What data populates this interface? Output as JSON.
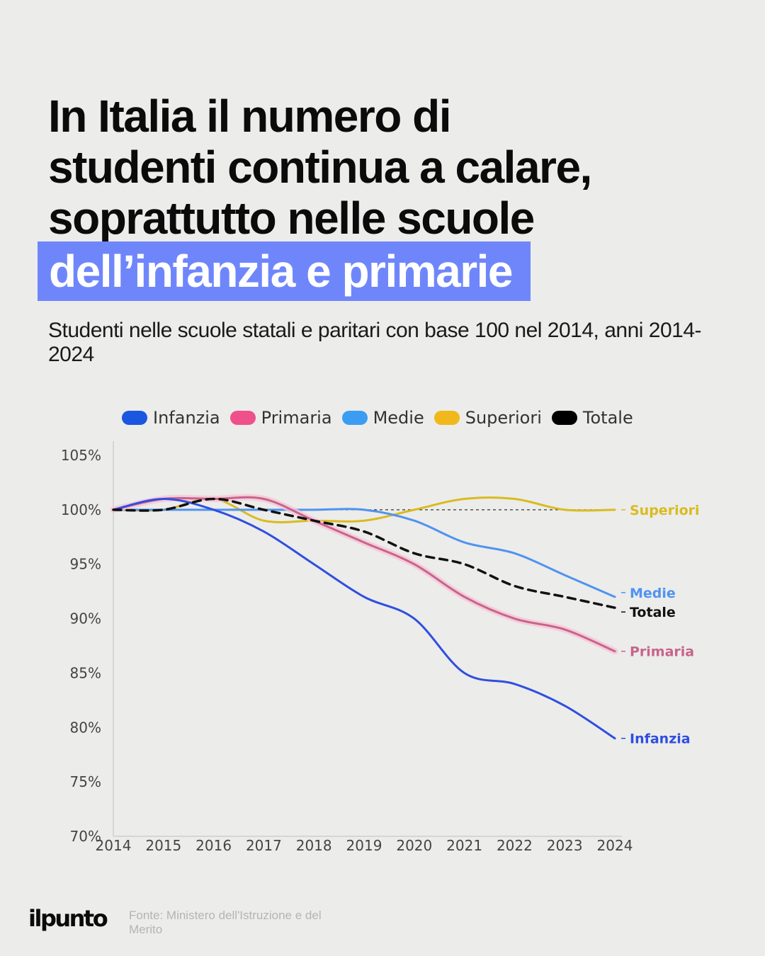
{
  "title": {
    "line1": "In Italia il numero di",
    "line2": "studenti continua a calare,",
    "line3": "soprattutto nelle scuole",
    "highlight": "dell’infanzia e primarie"
  },
  "subtitle": "Studenti nelle scuole statali e paritari con base 100 nel 2014, anni 2014-2024",
  "footer": {
    "logo": "ilpunto",
    "source": "Fonte: Ministero dell'Istruzione e del Merito"
  },
  "colors": {
    "highlight": "#6f86fb",
    "infanzia": "#2f4fe0",
    "primaria": "#c8648a",
    "medie": "#4f93f0",
    "superiori": "#d9bb1f",
    "totale": "#111111"
  },
  "chart_data": {
    "type": "line",
    "x": [
      "2014",
      "2015",
      "2016",
      "2017",
      "2018",
      "2019",
      "2020",
      "2021",
      "2022",
      "2023",
      "2024"
    ],
    "ylim": [
      70,
      105
    ],
    "yticks": [
      "70%",
      "75%",
      "80%",
      "85%",
      "90%",
      "95%",
      "100%",
      "105%"
    ],
    "reference_line": 100,
    "legend_position": "top",
    "series": [
      {
        "key": "infanzia",
        "name": "Infanzia",
        "legend_color": "#1a56e0",
        "values": [
          100,
          101,
          100,
          98,
          95,
          92,
          90,
          85,
          84,
          82,
          79
        ],
        "end_label": "Infanzia",
        "dashed": false
      },
      {
        "key": "primaria",
        "name": "Primaria",
        "legend_color": "#f0508a",
        "values": [
          100,
          101,
          101,
          101,
          99,
          97,
          95,
          92,
          90,
          89,
          87
        ],
        "end_label": "Primaria",
        "dashed": false
      },
      {
        "key": "medie",
        "name": "Medie",
        "legend_color": "#3a9df2",
        "values": [
          100,
          100,
          100,
          100,
          100,
          100,
          99,
          97,
          96,
          94,
          92
        ],
        "end_label": "Medie",
        "dashed": false
      },
      {
        "key": "superiori",
        "name": "Superiori",
        "legend_color": "#f0b81a",
        "values": [
          100,
          100,
          101,
          99,
          99,
          99,
          100,
          101,
          101,
          100,
          100
        ],
        "end_label": "Superiori",
        "dashed": false
      },
      {
        "key": "totale",
        "name": "Totale",
        "legend_color": "#000000",
        "values": [
          100,
          100,
          101,
          100,
          99,
          98,
          96,
          95,
          93,
          92,
          91
        ],
        "end_label": "Totale",
        "dashed": true
      }
    ]
  }
}
